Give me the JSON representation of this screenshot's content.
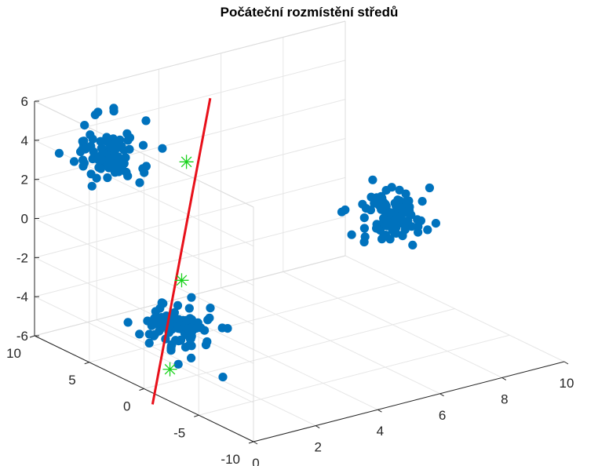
{
  "chart_data": {
    "type": "scatter3d",
    "title": "Počáteční rozmístění středů",
    "xlabel": "",
    "ylabel": "",
    "zlabel": "",
    "xlim": [
      0,
      10
    ],
    "ylim": [
      -10,
      10
    ],
    "zlim": [
      -6,
      6
    ],
    "x_ticks": [
      "0",
      "2",
      "4",
      "6",
      "8",
      "10"
    ],
    "y_ticks": [
      "-10",
      "-5",
      "0",
      "5",
      "10"
    ],
    "z_ticks": [
      "-6",
      "-4",
      "-2",
      "0",
      "2",
      "4",
      "6"
    ],
    "grid": true,
    "view": "3d-default",
    "colors": {
      "points": "#0072BD",
      "line": "#E8101A",
      "centers": "#19D21C",
      "grid": "#E6E6E6",
      "axis": "#262626"
    },
    "series": [
      {
        "kind": "scatter",
        "clusters": [
          {
            "center": [
              1.3,
              7.1,
              3.5
            ],
            "spread": [
              0.9,
              1.8,
              1.3
            ],
            "count": 90
          },
          {
            "center": [
              0.3,
              -2.2,
              -2.3
            ],
            "spread": [
              0.8,
              1.8,
              1.1
            ],
            "count": 95
          },
          {
            "center": [
              6.8,
              -3.5,
              1.0
            ],
            "spread": [
              0.8,
              1.7,
              1.2
            ],
            "count": 95
          }
        ],
        "points": []
      },
      {
        "kind": "line",
        "points": [
          [
            -0.5,
            -2.2,
            -6.0
          ],
          [
            2.8,
            1.9,
            7.2
          ]
        ]
      },
      {
        "kind": "centers",
        "points": [
          [
            0.2,
            -1.8,
            -4.6
          ],
          [
            1.0,
            -0.6,
            -0.7
          ],
          [
            2.0,
            1.8,
            4.3
          ]
        ]
      }
    ]
  }
}
